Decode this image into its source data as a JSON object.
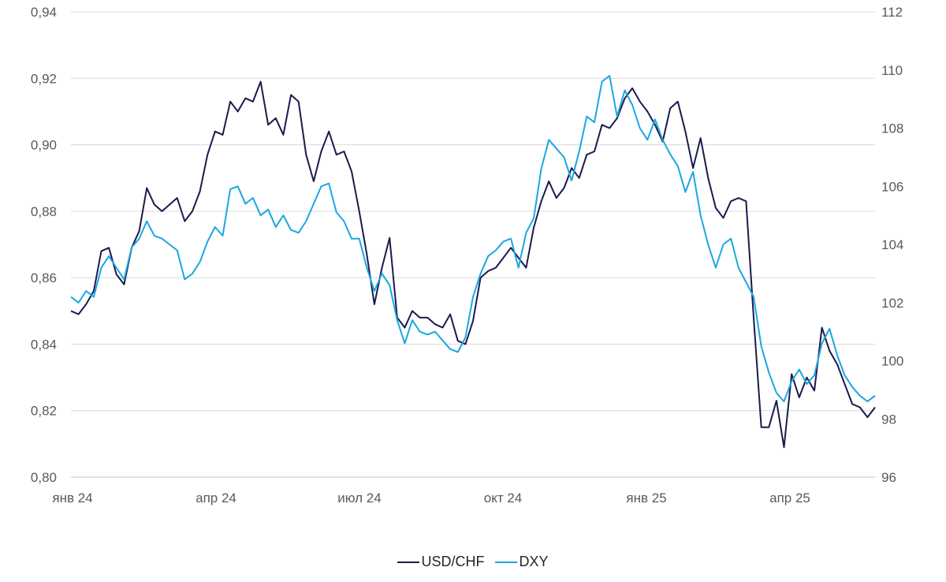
{
  "chart_data": {
    "type": "line",
    "title": "",
    "x_tick_labels": [
      "янв 24",
      "апр 24",
      "июл 24",
      "окт 24",
      "янв 25",
      "апр 25"
    ],
    "y_left": {
      "ylim": [
        0.8,
        0.94
      ],
      "ticks": [
        "0,80",
        "0,82",
        "0,84",
        "0,86",
        "0,88",
        "0,90",
        "0,92",
        "0,94"
      ]
    },
    "y_right": {
      "ylim": [
        96,
        112
      ],
      "ticks": [
        "96",
        "98",
        "100",
        "102",
        "104",
        "106",
        "108",
        "110",
        "112"
      ]
    },
    "grid": true,
    "legend_position": "bottom-center",
    "series": [
      {
        "name": "USD/CHF",
        "axis": "left",
        "color": "#1a1a4e",
        "values": [
          0.85,
          0.849,
          0.852,
          0.856,
          0.868,
          0.869,
          0.861,
          0.858,
          0.869,
          0.874,
          0.887,
          0.882,
          0.88,
          0.882,
          0.884,
          0.877,
          0.88,
          0.886,
          0.897,
          0.904,
          0.903,
          0.913,
          0.91,
          0.914,
          0.913,
          0.919,
          0.906,
          0.908,
          0.903,
          0.915,
          0.913,
          0.897,
          0.889,
          0.898,
          0.904,
          0.897,
          0.898,
          0.892,
          0.88,
          0.867,
          0.852,
          0.863,
          0.872,
          0.848,
          0.845,
          0.85,
          0.848,
          0.848,
          0.846,
          0.845,
          0.849,
          0.841,
          0.84,
          0.847,
          0.86,
          0.862,
          0.863,
          0.866,
          0.869,
          0.866,
          0.863,
          0.875,
          0.883,
          0.889,
          0.884,
          0.887,
          0.893,
          0.89,
          0.897,
          0.898,
          0.906,
          0.905,
          0.908,
          0.914,
          0.917,
          0.913,
          0.91,
          0.906,
          0.901,
          0.911,
          0.913,
          0.904,
          0.893,
          0.902,
          0.89,
          0.881,
          0.878,
          0.883,
          0.884,
          0.883,
          0.848,
          0.815,
          0.815,
          0.823,
          0.809,
          0.831,
          0.824,
          0.83,
          0.826,
          0.845,
          0.838,
          0.834,
          0.828,
          0.822,
          0.821,
          0.818,
          0.821
        ]
      },
      {
        "name": "DXY",
        "axis": "right",
        "color": "#1aa7e0",
        "values": [
          102.2,
          102.0,
          102.4,
          102.2,
          103.2,
          103.6,
          103.2,
          102.8,
          103.9,
          104.2,
          104.8,
          104.3,
          104.2,
          104.0,
          103.8,
          102.8,
          103.0,
          103.4,
          104.1,
          104.6,
          104.3,
          105.9,
          106.0,
          105.4,
          105.6,
          105.0,
          105.2,
          104.6,
          105.0,
          104.5,
          104.4,
          104.8,
          105.4,
          106.0,
          106.1,
          105.1,
          104.8,
          104.2,
          104.2,
          103.2,
          102.4,
          103.0,
          102.6,
          101.4,
          100.6,
          101.4,
          101.0,
          100.9,
          101.0,
          100.7,
          100.4,
          100.3,
          100.8,
          102.2,
          103.0,
          103.6,
          103.8,
          104.1,
          104.2,
          103.2,
          104.4,
          104.9,
          106.6,
          107.6,
          107.3,
          107.0,
          106.2,
          107.2,
          108.4,
          108.2,
          109.6,
          109.8,
          108.4,
          109.3,
          108.8,
          108.0,
          107.6,
          108.3,
          107.6,
          107.1,
          106.7,
          105.8,
          106.5,
          105.0,
          104.0,
          103.2,
          104.0,
          104.2,
          103.2,
          102.7,
          102.2,
          100.5,
          99.6,
          98.9,
          98.6,
          99.3,
          99.7,
          99.2,
          99.5,
          100.6,
          101.1,
          100.2,
          99.5,
          99.1,
          98.8,
          98.6,
          98.8
        ]
      }
    ]
  },
  "legend": {
    "usdchf_label": "USD/CHF",
    "dxy_label": "DXY"
  }
}
